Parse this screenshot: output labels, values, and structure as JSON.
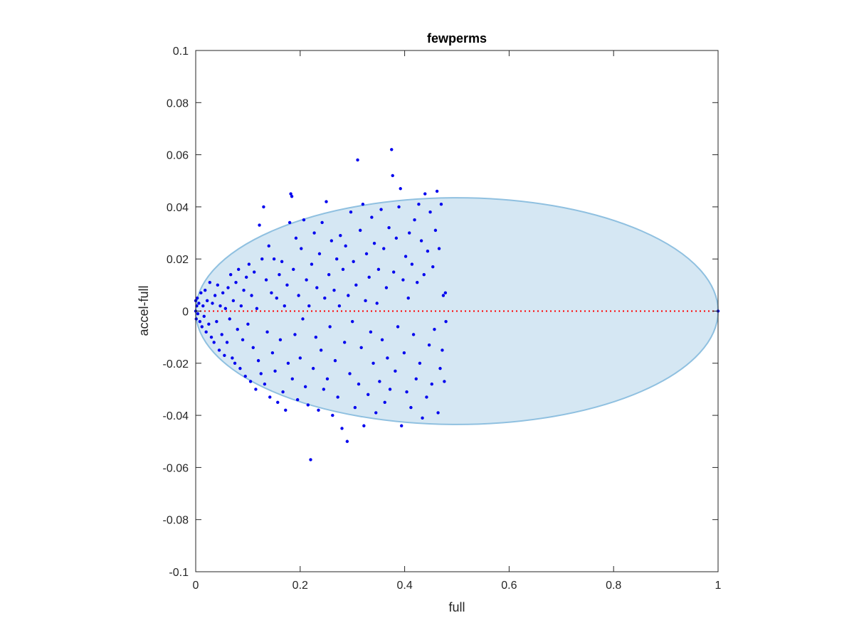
{
  "chart_data": {
    "type": "scatter",
    "title": "fewperms",
    "xlabel": "full",
    "ylabel": "accel-full",
    "xlim": [
      0,
      1
    ],
    "ylim": [
      -0.1,
      0.1
    ],
    "xticks": [
      "0",
      "0.2",
      "0.4",
      "0.6",
      "0.8",
      "1"
    ],
    "yticks": [
      "-0.1",
      "-0.08",
      "-0.06",
      "-0.04",
      "-0.02",
      "0",
      "0.02",
      "0.04",
      "0.06",
      "0.08",
      "0.1"
    ],
    "grid": false,
    "point_color": "#0000ee",
    "ellipse": {
      "center_x": 0.5,
      "center_y": 0.0,
      "radius_x": 0.5,
      "radius_y": 0.0435,
      "fill": "#d5e7f3",
      "stroke": "#8fc0e0"
    },
    "reference_line": {
      "y": 0,
      "color": "#ff0000",
      "style": "dotted"
    },
    "points": [
      [
        0.0,
        0.0
      ],
      [
        0.0,
        0.004
      ],
      [
        0.001,
        -0.003
      ],
      [
        0.002,
        0.002
      ],
      [
        0.003,
        0.005
      ],
      [
        0.004,
        -0.001
      ],
      [
        0.006,
        0.003
      ],
      [
        0.008,
        -0.004
      ],
      [
        0.01,
        0.007
      ],
      [
        0.012,
        -0.006
      ],
      [
        0.014,
        0.002
      ],
      [
        0.016,
        -0.002
      ],
      [
        0.018,
        0.008
      ],
      [
        0.02,
        -0.008
      ],
      [
        0.022,
        0.004
      ],
      [
        0.025,
        -0.005
      ],
      [
        0.027,
        0.011
      ],
      [
        0.03,
        -0.01
      ],
      [
        0.032,
        0.003
      ],
      [
        0.035,
        -0.012
      ],
      [
        0.037,
        0.006
      ],
      [
        0.04,
        -0.004
      ],
      [
        0.042,
        0.01
      ],
      [
        0.045,
        -0.015
      ],
      [
        0.047,
        0.002
      ],
      [
        0.05,
        -0.009
      ],
      [
        0.052,
        0.007
      ],
      [
        0.055,
        -0.017
      ],
      [
        0.057,
        0.001
      ],
      [
        0.06,
        -0.012
      ],
      [
        0.062,
        0.009
      ],
      [
        0.065,
        -0.003
      ],
      [
        0.067,
        0.014
      ],
      [
        0.07,
        -0.018
      ],
      [
        0.072,
        0.004
      ],
      [
        0.075,
        -0.02
      ],
      [
        0.077,
        0.011
      ],
      [
        0.08,
        -0.007
      ],
      [
        0.082,
        0.016
      ],
      [
        0.085,
        -0.022
      ],
      [
        0.087,
        0.002
      ],
      [
        0.09,
        -0.011
      ],
      [
        0.092,
        0.008
      ],
      [
        0.095,
        -0.025
      ],
      [
        0.097,
        0.013
      ],
      [
        0.1,
        -0.005
      ],
      [
        0.102,
        0.018
      ],
      [
        0.105,
        -0.027
      ],
      [
        0.107,
        0.006
      ],
      [
        0.11,
        -0.014
      ],
      [
        0.112,
        0.015
      ],
      [
        0.115,
        -0.03
      ],
      [
        0.117,
        0.001
      ],
      [
        0.12,
        -0.019
      ],
      [
        0.122,
        0.033
      ],
      [
        0.125,
        -0.024
      ],
      [
        0.127,
        0.02
      ],
      [
        0.13,
        0.04
      ],
      [
        0.132,
        -0.028
      ],
      [
        0.135,
        0.012
      ],
      [
        0.137,
        -0.008
      ],
      [
        0.14,
        0.025
      ],
      [
        0.142,
        -0.033
      ],
      [
        0.145,
        0.007
      ],
      [
        0.147,
        -0.016
      ],
      [
        0.15,
        0.02
      ],
      [
        0.152,
        -0.023
      ],
      [
        0.155,
        0.005
      ],
      [
        0.157,
        -0.035
      ],
      [
        0.16,
        0.014
      ],
      [
        0.162,
        -0.011
      ],
      [
        0.165,
        0.019
      ],
      [
        0.167,
        -0.031
      ],
      [
        0.17,
        0.002
      ],
      [
        0.172,
        -0.038
      ],
      [
        0.175,
        0.01
      ],
      [
        0.177,
        -0.02
      ],
      [
        0.18,
        0.034
      ],
      [
        0.182,
        0.045
      ],
      [
        0.184,
        0.044
      ],
      [
        0.185,
        -0.026
      ],
      [
        0.187,
        0.016
      ],
      [
        0.19,
        -0.009
      ],
      [
        0.192,
        0.028
      ],
      [
        0.195,
        -0.034
      ],
      [
        0.197,
        0.006
      ],
      [
        0.2,
        -0.018
      ],
      [
        0.202,
        0.024
      ],
      [
        0.205,
        -0.003
      ],
      [
        0.207,
        0.035
      ],
      [
        0.21,
        -0.029
      ],
      [
        0.212,
        0.012
      ],
      [
        0.215,
        -0.036
      ],
      [
        0.217,
        0.002
      ],
      [
        0.22,
        -0.057
      ],
      [
        0.222,
        0.018
      ],
      [
        0.225,
        -0.022
      ],
      [
        0.227,
        0.03
      ],
      [
        0.23,
        -0.01
      ],
      [
        0.232,
        0.009
      ],
      [
        0.235,
        -0.038
      ],
      [
        0.237,
        0.022
      ],
      [
        0.24,
        -0.015
      ],
      [
        0.242,
        0.034
      ],
      [
        0.245,
        -0.03
      ],
      [
        0.247,
        0.005
      ],
      [
        0.25,
        0.042
      ],
      [
        0.252,
        -0.026
      ],
      [
        0.255,
        0.014
      ],
      [
        0.257,
        -0.006
      ],
      [
        0.26,
        0.027
      ],
      [
        0.262,
        -0.04
      ],
      [
        0.265,
        0.008
      ],
      [
        0.267,
        -0.019
      ],
      [
        0.27,
        0.02
      ],
      [
        0.272,
        -0.033
      ],
      [
        0.275,
        0.002
      ],
      [
        0.277,
        0.029
      ],
      [
        0.28,
        -0.045
      ],
      [
        0.282,
        0.016
      ],
      [
        0.285,
        -0.012
      ],
      [
        0.287,
        0.025
      ],
      [
        0.29,
        -0.05
      ],
      [
        0.292,
        0.006
      ],
      [
        0.295,
        -0.024
      ],
      [
        0.297,
        0.038
      ],
      [
        0.3,
        -0.004
      ],
      [
        0.302,
        0.019
      ],
      [
        0.305,
        -0.037
      ],
      [
        0.307,
        0.01
      ],
      [
        0.31,
        0.058
      ],
      [
        0.312,
        -0.028
      ],
      [
        0.315,
        0.031
      ],
      [
        0.317,
        -0.014
      ],
      [
        0.32,
        0.041
      ],
      [
        0.322,
        -0.044
      ],
      [
        0.325,
        0.004
      ],
      [
        0.327,
        0.022
      ],
      [
        0.33,
        -0.032
      ],
      [
        0.332,
        0.013
      ],
      [
        0.335,
        -0.008
      ],
      [
        0.337,
        0.036
      ],
      [
        0.34,
        -0.02
      ],
      [
        0.342,
        0.026
      ],
      [
        0.345,
        -0.039
      ],
      [
        0.347,
        0.003
      ],
      [
        0.35,
        0.016
      ],
      [
        0.352,
        -0.027
      ],
      [
        0.355,
        0.039
      ],
      [
        0.357,
        -0.011
      ],
      [
        0.36,
        0.024
      ],
      [
        0.362,
        -0.035
      ],
      [
        0.365,
        0.009
      ],
      [
        0.367,
        -0.018
      ],
      [
        0.37,
        0.032
      ],
      [
        0.372,
        -0.03
      ],
      [
        0.375,
        0.062
      ],
      [
        0.377,
        0.052
      ],
      [
        0.379,
        0.015
      ],
      [
        0.382,
        -0.023
      ],
      [
        0.384,
        0.028
      ],
      [
        0.387,
        -0.006
      ],
      [
        0.389,
        0.04
      ],
      [
        0.392,
        0.047
      ],
      [
        0.394,
        -0.044
      ],
      [
        0.397,
        0.012
      ],
      [
        0.399,
        -0.016
      ],
      [
        0.402,
        0.021
      ],
      [
        0.404,
        -0.031
      ],
      [
        0.407,
        0.005
      ],
      [
        0.409,
        0.03
      ],
      [
        0.412,
        -0.037
      ],
      [
        0.414,
        0.018
      ],
      [
        0.417,
        -0.009
      ],
      [
        0.419,
        0.035
      ],
      [
        0.422,
        -0.026
      ],
      [
        0.424,
        0.011
      ],
      [
        0.427,
        0.041
      ],
      [
        0.429,
        -0.02
      ],
      [
        0.432,
        0.027
      ],
      [
        0.434,
        -0.041
      ],
      [
        0.437,
        0.014
      ],
      [
        0.439,
        0.045
      ],
      [
        0.442,
        -0.033
      ],
      [
        0.444,
        0.023
      ],
      [
        0.447,
        -0.013
      ],
      [
        0.449,
        0.038
      ],
      [
        0.452,
        -0.028
      ],
      [
        0.454,
        0.017
      ],
      [
        0.457,
        -0.007
      ],
      [
        0.459,
        0.031
      ],
      [
        0.462,
        0.046
      ],
      [
        0.464,
        -0.039
      ],
      [
        0.466,
        0.024
      ],
      [
        0.468,
        -0.022
      ],
      [
        0.47,
        0.041
      ],
      [
        0.472,
        -0.015
      ],
      [
        0.474,
        0.006
      ],
      [
        0.476,
        -0.027
      ],
      [
        0.478,
        0.007
      ],
      [
        0.479,
        -0.004
      ],
      [
        1.0,
        0.0
      ]
    ]
  }
}
